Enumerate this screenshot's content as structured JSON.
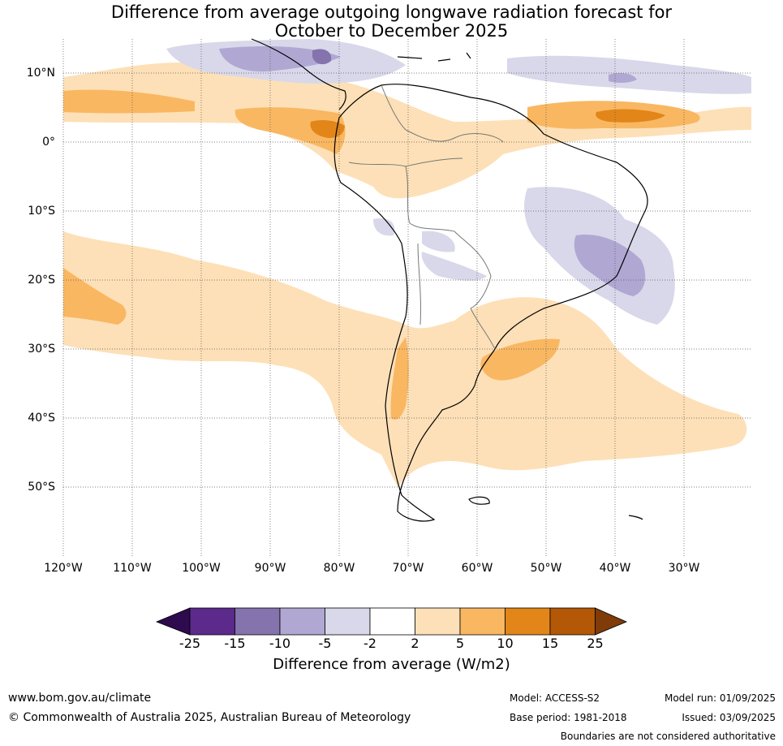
{
  "title_line1": "Difference from average outgoing longwave radiation forecast for",
  "title_line2": "October to December 2025",
  "lat_labels": [
    "10°N",
    "0°",
    "10°S",
    "20°S",
    "30°S",
    "40°S",
    "50°S"
  ],
  "lon_labels": [
    "120°W",
    "110°W",
    "100°W",
    "90°W",
    "80°W",
    "70°W",
    "60°W",
    "50°W",
    "40°W",
    "30°W"
  ],
  "colorbar": {
    "ticks": [
      "-25",
      "-15",
      "-10",
      "-5",
      "-2",
      "2",
      "5",
      "10",
      "15",
      "25"
    ],
    "colors": [
      "#2d0b4e",
      "#5b2a8a",
      "#8473ad",
      "#b0a8d2",
      "#d8d8ea",
      "#ffffff",
      "#fde0b7",
      "#f9b762",
      "#e2861a",
      "#b35807",
      "#7f3b08"
    ],
    "title": "Difference from average (W/m2)"
  },
  "footer": {
    "url": "www.bom.gov.au/climate",
    "copyright": "© Commonwealth of Australia 2025, Australian Bureau of Meteorology",
    "model": "Model: ACCESS-S2",
    "base_period": "Base period: 1981-2018",
    "model_run": "Model run: 01/09/2025",
    "issued": "Issued: 03/09/2025",
    "disclaimer": "Boundaries are not considered authoritative"
  }
}
